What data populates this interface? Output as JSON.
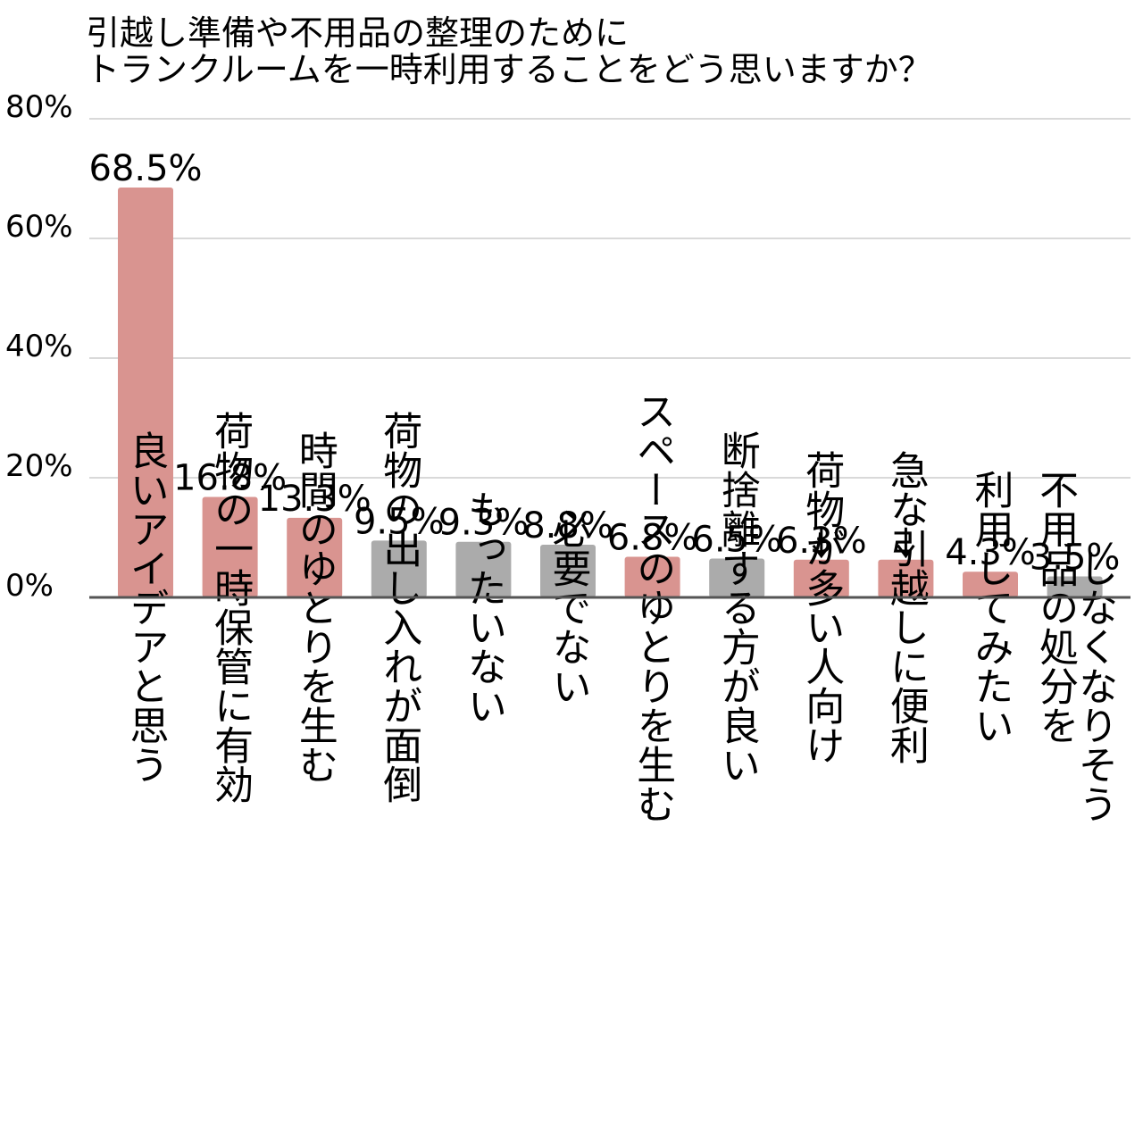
{
  "chart_data": {
    "type": "bar",
    "title_lines": [
      "引越し準備や不用品の整理のために",
      "トランクルームを一時利用することをどう思いますか？"
    ],
    "ylim": [
      0,
      80
    ],
    "yticks": [
      {
        "value": 0,
        "label": "0%"
      },
      {
        "value": 20,
        "label": "20%"
      },
      {
        "value": 40,
        "label": "40%"
      },
      {
        "value": 60,
        "label": "60%"
      },
      {
        "value": 80,
        "label": "80%"
      }
    ],
    "grid": true,
    "colors": {
      "positive": "#d99490",
      "negative": "#ababab"
    },
    "categories": [
      {
        "lines": [
          "良いアイデアと思う"
        ],
        "value": 68.5,
        "label": "68.5%",
        "group": "positive"
      },
      {
        "lines": [
          "荷物の一時保管に有効"
        ],
        "value": 16.8,
        "label": "16.8%",
        "group": "positive"
      },
      {
        "lines": [
          "時間のゆとりを生む"
        ],
        "value": 13.3,
        "label": "13.3%",
        "group": "positive"
      },
      {
        "lines": [
          "荷物の出し入れが面倒"
        ],
        "value": 9.5,
        "label": "9.5%",
        "group": "negative"
      },
      {
        "lines": [
          "もったいない"
        ],
        "value": 9.3,
        "label": "9.3%",
        "group": "negative"
      },
      {
        "lines": [
          "必要でない"
        ],
        "value": 8.8,
        "label": "8.8%",
        "group": "negative"
      },
      {
        "lines": [
          "スペースのゆとりを生む"
        ],
        "value": 6.8,
        "label": "6.8%",
        "group": "positive"
      },
      {
        "lines": [
          "断捨離する方が良い"
        ],
        "value": 6.5,
        "label": "6.5%",
        "group": "negative"
      },
      {
        "lines": [
          "荷物が多い人向け"
        ],
        "value": 6.3,
        "label": "6.3%",
        "group": "positive",
        "arrow": true
      },
      {
        "lines": [
          "急な引越しに便利"
        ],
        "value": 6.3,
        "label": "",
        "group": "positive",
        "arrow": true
      },
      {
        "lines": [
          "利用してみたい"
        ],
        "value": 4.3,
        "label": "4.3%",
        "group": "positive"
      },
      {
        "lines": [
          "不用品の処分を",
          "しなくなりそう"
        ],
        "value": 3.5,
        "label": "3.5%",
        "group": "negative"
      }
    ]
  }
}
